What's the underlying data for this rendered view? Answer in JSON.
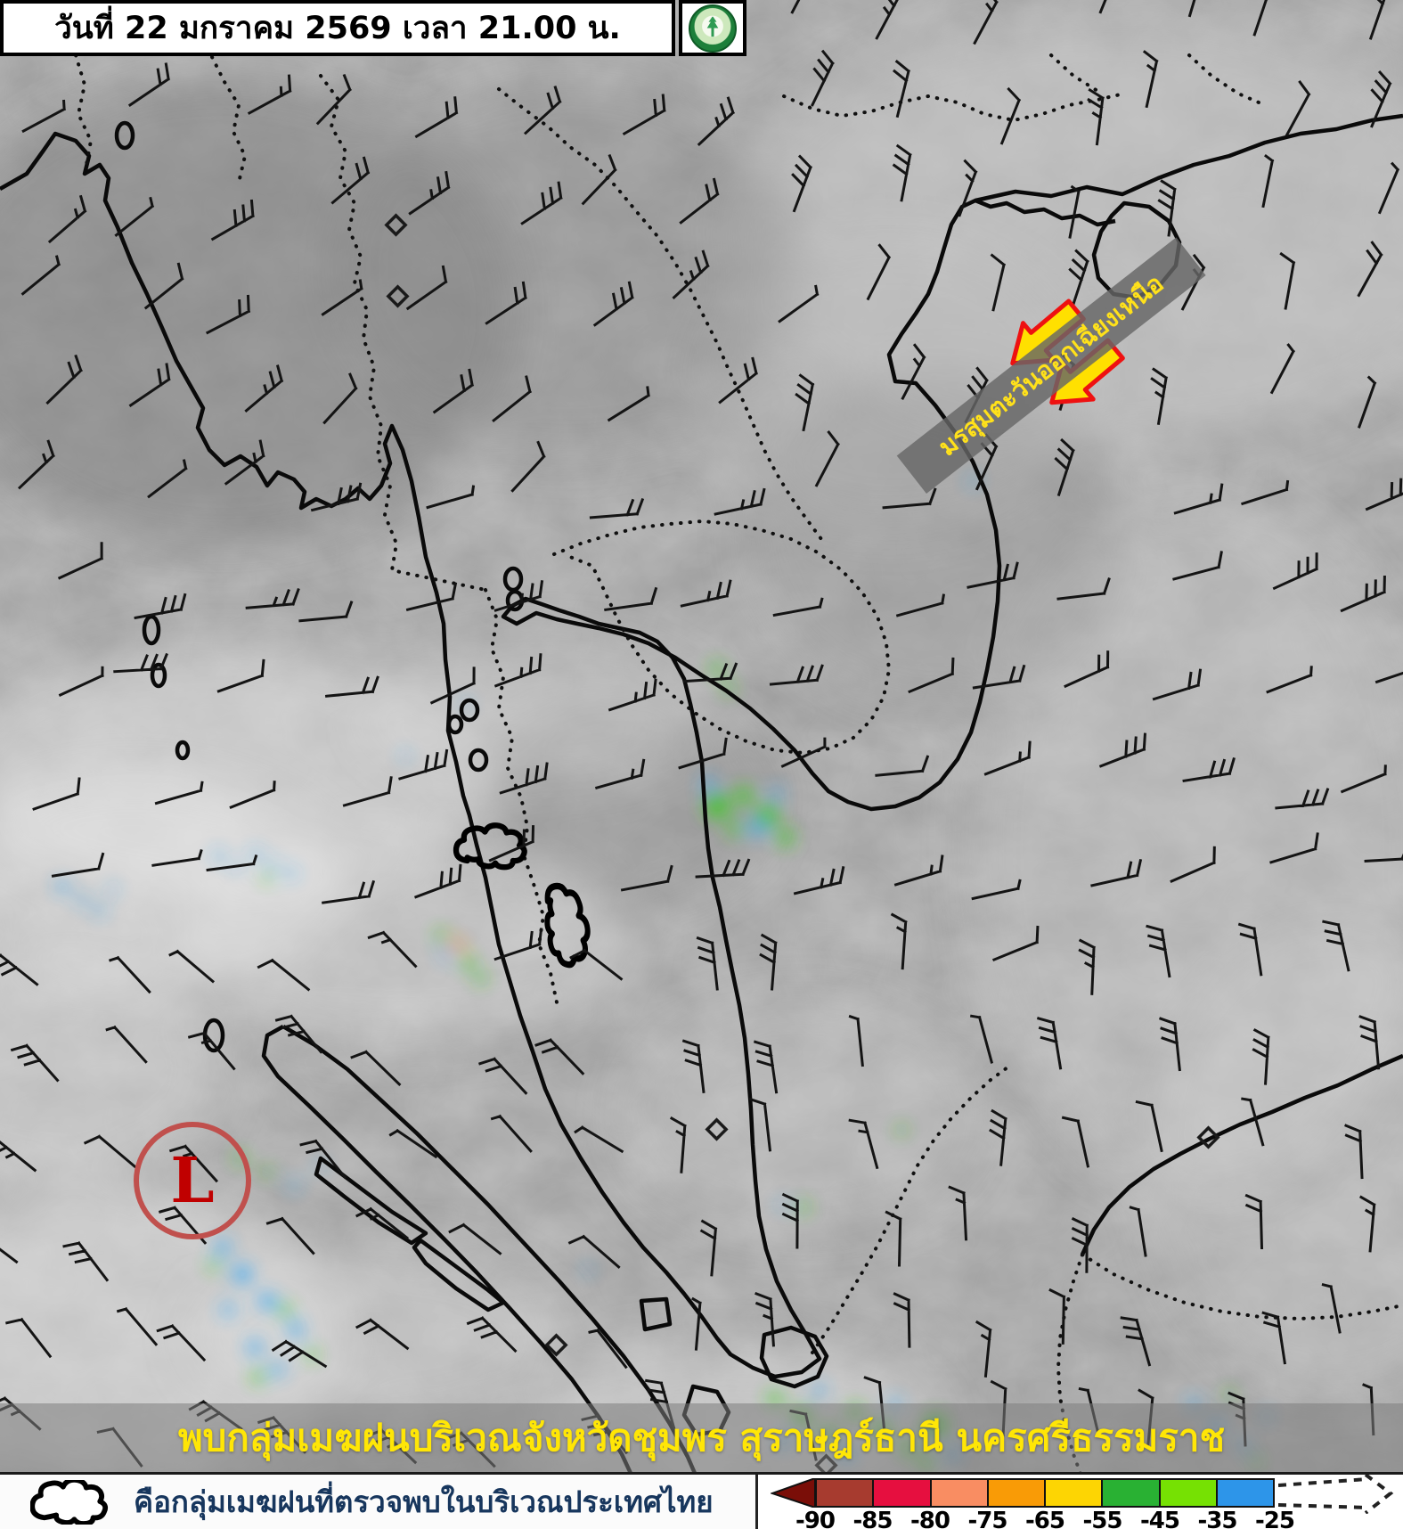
{
  "header": {
    "date_label": "วันที่ 22 มกราคม 2569 เวลา 21.00 น.",
    "logo_name": "thai-meteorological-department-seal"
  },
  "map": {
    "monsoon_label": "มรสุมตะวันออกเฉียงเหนือ",
    "low_symbol": "L",
    "caption": "พบกลุ่มเมฆฝนบริเวณจังหวัดชุมพร สุราษฎร์ธานี นครศรีธรรมราช",
    "annotation_colors": {
      "arrow_fill": "#ffe000",
      "arrow_stroke": "#ee1111",
      "banner_text": "#ffe11a",
      "low_circle": "#c0504d",
      "low_letter": "#c00000",
      "caption_text": "#ffe606"
    }
  },
  "legend": {
    "cloud_note": "คือกลุ่มเมฆฝนที่ตรวจพบในบริเวณประเทศไทย",
    "note_color": "#17365d",
    "scale_ticks": [
      "-90",
      "-85",
      "-80",
      "-75",
      "-65",
      "-55",
      "-45",
      "-35",
      "-25"
    ],
    "scale_segment_colors": [
      "#a73b2f",
      "#e60f3f",
      "#f98d62",
      "#f99b06",
      "#fdd503",
      "#29b133",
      "#76e103",
      "#2d95e9"
    ],
    "scale_arrow_color": "#7a0e08"
  }
}
